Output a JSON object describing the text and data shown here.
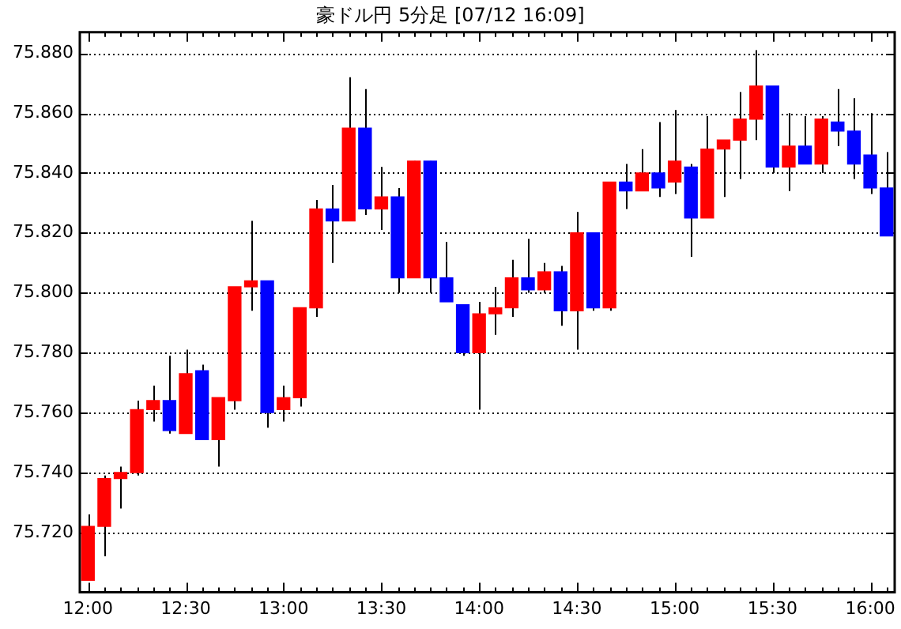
{
  "chart_data": {
    "type": "candlestick",
    "title": "豪ドル円 5分足 [07/12 16:09]",
    "categories": [
      "12:00",
      null,
      null,
      null,
      null,
      null,
      "12:30",
      null,
      null,
      null,
      null,
      null,
      "13:00",
      null,
      null,
      null,
      null,
      null,
      "13:30",
      null,
      null,
      null,
      null,
      null,
      "14:00",
      null,
      null,
      null,
      null,
      null,
      "14:30",
      null,
      null,
      null,
      null,
      null,
      "15:00",
      null,
      null,
      null,
      null,
      null,
      "15:30",
      null,
      null,
      null,
      null,
      null,
      "16:00",
      null
    ],
    "ohlc": [
      [
        75.704,
        75.726,
        75.704,
        75.722
      ],
      [
        75.722,
        75.739,
        75.712,
        75.738
      ],
      [
        75.738,
        75.742,
        75.728,
        75.74
      ],
      [
        75.74,
        75.764,
        75.739,
        75.761
      ],
      [
        75.761,
        75.769,
        75.757,
        75.764
      ],
      [
        75.764,
        75.779,
        75.753,
        75.754
      ],
      [
        75.753,
        75.781,
        75.753,
        75.773
      ],
      [
        75.774,
        75.776,
        75.751,
        75.751
      ],
      [
        75.751,
        75.765,
        75.742,
        75.765
      ],
      [
        75.764,
        75.802,
        75.761,
        75.802
      ],
      [
        75.802,
        75.824,
        75.794,
        75.804
      ],
      [
        75.804,
        75.804,
        75.755,
        75.76
      ],
      [
        75.761,
        75.769,
        75.757,
        75.765
      ],
      [
        75.765,
        75.795,
        75.762,
        75.795
      ],
      [
        75.795,
        75.831,
        75.792,
        75.828
      ],
      [
        75.828,
        75.836,
        75.81,
        75.824
      ],
      [
        75.824,
        75.872,
        75.824,
        75.855
      ],
      [
        75.855,
        75.868,
        75.826,
        75.828
      ],
      [
        75.828,
        75.842,
        75.821,
        75.832
      ],
      [
        75.832,
        75.835,
        75.8,
        75.805
      ],
      [
        75.805,
        75.844,
        75.805,
        75.844
      ],
      [
        75.844,
        75.844,
        75.8,
        75.805
      ],
      [
        75.805,
        75.817,
        75.797,
        75.797
      ],
      [
        75.796,
        75.796,
        75.779,
        75.78
      ],
      [
        75.78,
        75.797,
        75.761,
        75.793
      ],
      [
        75.793,
        75.802,
        75.786,
        75.795
      ],
      [
        75.795,
        75.811,
        75.792,
        75.805
      ],
      [
        75.805,
        75.818,
        75.8,
        75.801
      ],
      [
        75.801,
        75.81,
        75.8,
        75.807
      ],
      [
        75.807,
        75.809,
        75.789,
        75.794
      ],
      [
        75.794,
        75.827,
        75.781,
        75.82
      ],
      [
        75.82,
        75.82,
        75.794,
        75.795
      ],
      [
        75.795,
        75.837,
        75.794,
        75.837
      ],
      [
        75.837,
        75.843,
        75.828,
        75.834
      ],
      [
        75.834,
        75.848,
        75.834,
        75.84
      ],
      [
        75.84,
        75.857,
        75.832,
        75.835
      ],
      [
        75.837,
        75.861,
        75.833,
        75.844
      ],
      [
        75.842,
        75.843,
        75.812,
        75.825
      ],
      [
        75.825,
        75.859,
        75.825,
        75.848
      ],
      [
        75.848,
        75.851,
        75.832,
        75.851
      ],
      [
        75.851,
        75.867,
        75.838,
        75.858
      ],
      [
        75.858,
        75.881,
        75.851,
        75.869
      ],
      [
        75.869,
        75.869,
        75.84,
        75.842
      ],
      [
        75.842,
        75.86,
        75.834,
        75.849
      ],
      [
        75.849,
        75.859,
        75.843,
        75.843
      ],
      [
        75.843,
        75.859,
        75.84,
        75.858
      ],
      [
        75.857,
        75.868,
        75.849,
        75.854
      ],
      [
        75.854,
        75.865,
        75.838,
        75.843
      ],
      [
        75.846,
        75.86,
        75.833,
        75.835
      ],
      [
        75.835,
        75.847,
        75.819,
        75.819
      ]
    ],
    "colors": [
      "#ff0000",
      "#ff0000",
      "#ff0000",
      "#ff0000",
      "#ff0000",
      "#0000ff",
      "#ff0000",
      "#0000ff",
      "#ff0000",
      "#ff0000",
      "#ff0000",
      "#0000ff",
      "#ff0000",
      "#ff0000",
      "#ff0000",
      "#0000ff",
      "#ff0000",
      "#0000ff",
      "#ff0000",
      "#0000ff",
      "#ff0000",
      "#0000ff",
      "#0000ff",
      "#0000ff",
      "#ff0000",
      "#ff0000",
      "#ff0000",
      "#0000ff",
      "#ff0000",
      "#0000ff",
      "#ff0000",
      "#0000ff",
      "#ff0000",
      "#0000ff",
      "#ff0000",
      "#0000ff",
      "#ff0000",
      "#0000ff",
      "#ff0000",
      "#ff0000",
      "#ff0000",
      "#ff0000",
      "#0000ff",
      "#ff0000",
      "#0000ff",
      "#ff0000",
      "#0000ff",
      "#0000ff",
      "#0000ff",
      "#0000ff"
    ],
    "ylim": [
      75.7,
      75.887
    ],
    "yticks": [
      {
        "value": 75.72,
        "label": "75.720"
      },
      {
        "value": 75.74,
        "label": "75.740"
      },
      {
        "value": 75.76,
        "label": "75.760"
      },
      {
        "value": 75.78,
        "label": "75.780"
      },
      {
        "value": 75.8,
        "label": "75.800"
      },
      {
        "value": 75.82,
        "label": "75.820"
      },
      {
        "value": 75.84,
        "label": "75.840"
      },
      {
        "value": 75.86,
        "label": "75.860"
      },
      {
        "value": 75.88,
        "label": "75.880"
      }
    ],
    "grid": "y",
    "legend": false
  }
}
